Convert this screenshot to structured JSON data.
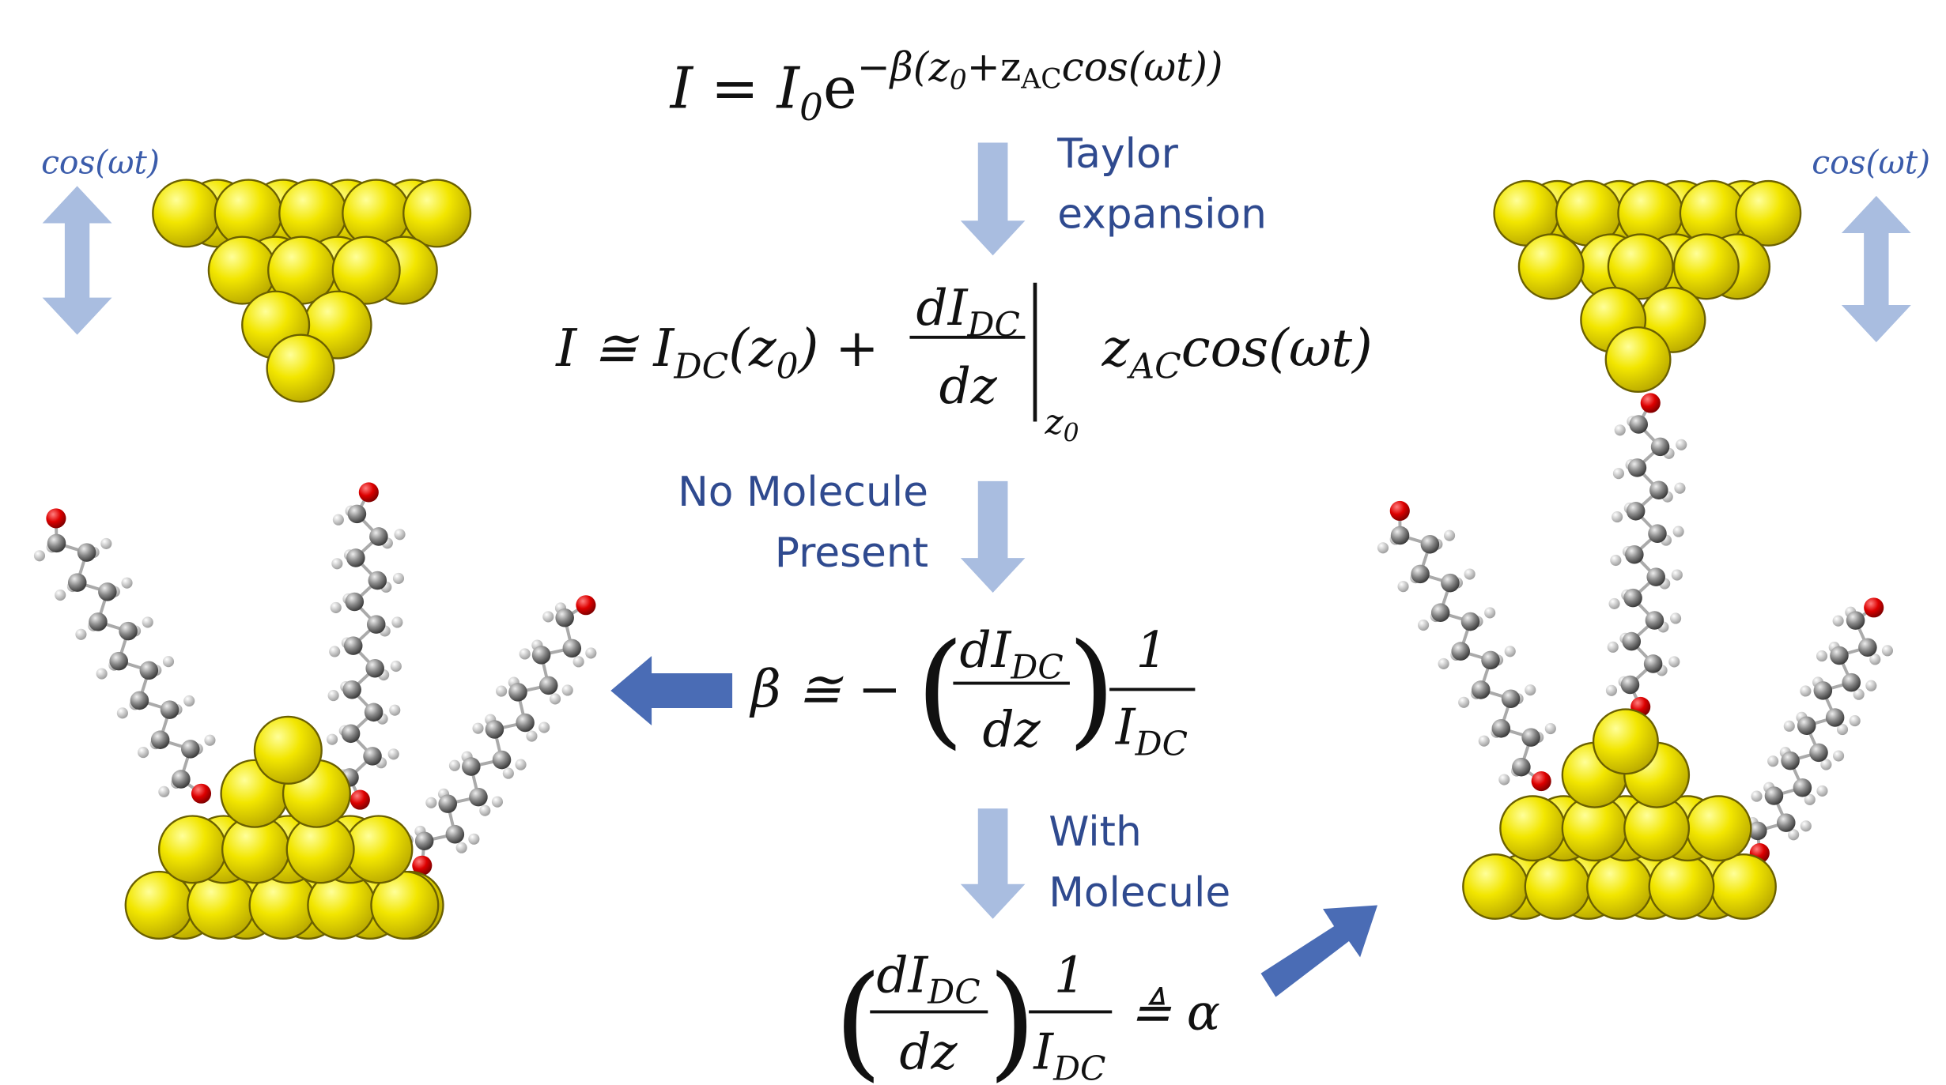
{
  "top_equation": {
    "parts": [
      "I = I",
      "0",
      "e",
      "−β(z",
      "0",
      "+z",
      "AC",
      "cos(ωt))"
    ]
  },
  "taylor_step": {
    "label": [
      "Taylor",
      "expansion"
    ]
  },
  "taylor_equation": {
    "lhs": [
      "I ≅ I",
      "DC",
      "(z",
      "0",
      ") +"
    ],
    "numerator": [
      "dI",
      "DC"
    ],
    "denominator": "dz",
    "evaluated_at": [
      "z",
      "0"
    ],
    "tail": [
      "z",
      "AC",
      "cos(ωt)"
    ]
  },
  "no_molecule_step": {
    "label": [
      "No Molecule",
      "Present"
    ]
  },
  "beta_equation": {
    "lhs": "β ≅ −",
    "open": "(",
    "numerator": [
      "dI",
      "DC"
    ],
    "denominator": "dz",
    "close": ")",
    "factor_numerator": "1",
    "factor_denominator": [
      "I",
      "DC"
    ]
  },
  "with_molecule_step": {
    "label": [
      "With",
      "Molecule"
    ]
  },
  "alpha_equation": {
    "open": "(",
    "numerator": [
      "dI",
      "DC"
    ],
    "denominator": "dz",
    "close": ")",
    "factor_numerator": "1",
    "factor_denominator": [
      "I",
      "DC"
    ],
    "rhs": "≜ α"
  },
  "oscillation_labels": {
    "left": "cos(ωt)",
    "right": "cos(ωt)"
  }
}
